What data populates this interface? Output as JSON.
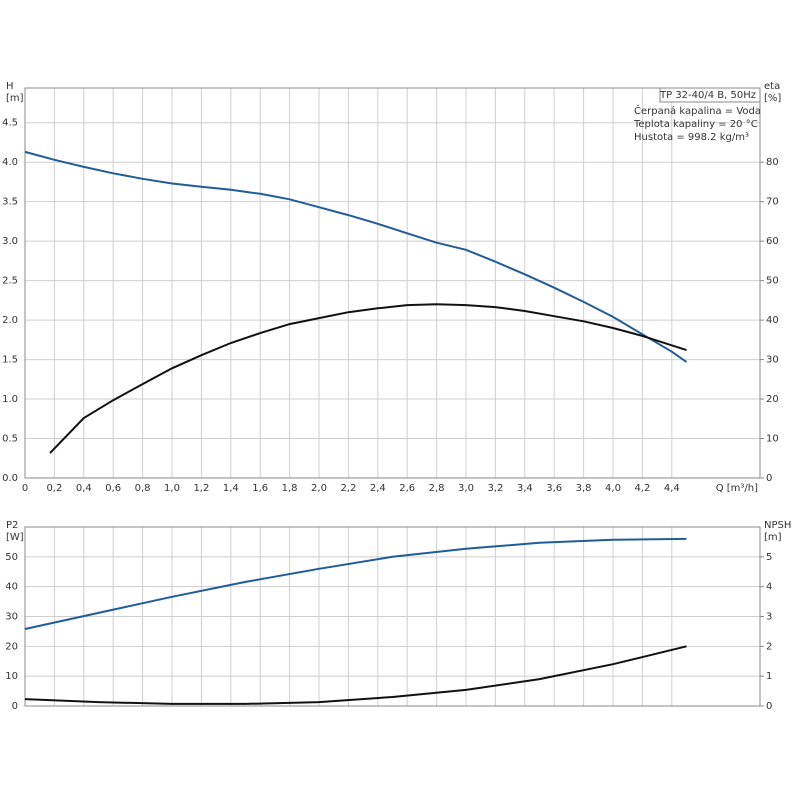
{
  "chart_data": [
    {
      "type": "line",
      "info_title": "TP 32-40/4 B, 50Hz",
      "info_lines": [
        "Čerpaná kapalina = Voda",
        "Teplota kapaliny = 20 °C",
        "Hustota = 998.2 kg/m³"
      ],
      "y_label": [
        "H",
        "[m]"
      ],
      "y2_label": [
        "eta",
        "[%]"
      ],
      "x_label": "Q [m³/h]",
      "xlim": [
        0,
        5.0
      ],
      "xticks": [
        0,
        {
          "value": 0.2,
          "label": "0,2"
        },
        {
          "value": 0.4,
          "label": "0,4"
        },
        {
          "value": 0.6,
          "label": "0,6"
        },
        {
          "value": 0.8,
          "label": "0,8"
        },
        {
          "value": 1.0,
          "label": "1,0"
        },
        {
          "value": 1.2,
          "label": "1,2"
        },
        {
          "value": 1.4,
          "label": "1,4"
        },
        {
          "value": 1.6,
          "label": "1,6"
        },
        {
          "value": 1.8,
          "label": "1,8"
        },
        {
          "value": 2.0,
          "label": "2,0"
        },
        {
          "value": 2.2,
          "label": "2,2"
        },
        {
          "value": 2.4,
          "label": "2,4"
        },
        {
          "value": 2.6,
          "label": "2,6"
        },
        {
          "value": 2.8,
          "label": "2,8"
        },
        {
          "value": 3.0,
          "label": "3,0"
        },
        {
          "value": 3.2,
          "label": "3,2"
        },
        {
          "value": 3.4,
          "label": "3,4"
        },
        {
          "value": 3.6,
          "label": "3,6"
        },
        {
          "value": 3.8,
          "label": "3,8"
        },
        {
          "value": 4.0,
          "label": "4,0"
        },
        {
          "value": 4.2,
          "label": "4,2"
        },
        {
          "value": 4.4,
          "label": "4,4"
        }
      ],
      "ylim": [
        0,
        4.94
      ],
      "yticks": [
        {
          "value": 0,
          "label": "0.0"
        },
        0.5,
        {
          "value": 1,
          "label": "1.0"
        },
        1.5,
        {
          "value": 2,
          "label": "2.0"
        },
        2.5,
        {
          "value": 3,
          "label": "3.0"
        },
        3.5,
        {
          "value": 4,
          "label": "4.0"
        },
        4.5
      ],
      "y2lim": [
        0,
        98.8
      ],
      "y2ticks": [
        0,
        10,
        20,
        30,
        40,
        50,
        60,
        70,
        80
      ],
      "grid": true,
      "series": [
        {
          "color": "#1f5c99",
          "x": [
            0,
            0.2,
            0.4,
            0.6,
            0.8,
            1.0,
            1.2,
            1.4,
            1.6,
            1.8,
            2.0,
            2.2,
            2.4,
            2.6,
            2.8,
            3.0,
            3.2,
            3.4,
            3.6,
            3.8,
            4.0,
            4.2,
            4.4,
            4.5
          ],
          "values": [
            4.13,
            4.03,
            3.94,
            3.86,
            3.79,
            3.73,
            3.69,
            3.65,
            3.6,
            3.53,
            3.43,
            3.33,
            3.22,
            3.1,
            2.98,
            2.89,
            2.74,
            2.58,
            2.41,
            2.23,
            2.04,
            1.82,
            1.6,
            1.47
          ]
        },
        {
          "color": "#111111",
          "axis": "y2",
          "x": [
            0.17,
            0.4,
            0.6,
            0.8,
            1.0,
            1.2,
            1.4,
            1.6,
            1.8,
            2.0,
            2.2,
            2.4,
            2.6,
            2.8,
            3.0,
            3.2,
            3.4,
            3.6,
            3.8,
            4.0,
            4.2,
            4.5
          ],
          "values": [
            6.3,
            15.2,
            19.7,
            23.8,
            27.8,
            31.1,
            34.2,
            36.7,
            39,
            40.5,
            42,
            43,
            43.8,
            44,
            43.8,
            43.3,
            42.3,
            41,
            39.7,
            38,
            36,
            32.4
          ]
        }
      ]
    },
    {
      "type": "line",
      "y_label": [
        "P2",
        "[W]"
      ],
      "y2_label": [
        "NPSH",
        "[m]"
      ],
      "xlim": [
        0,
        5.0
      ],
      "ylim": [
        0,
        60
      ],
      "yticks": [
        0,
        10,
        20,
        30,
        40,
        50
      ],
      "y2lim": [
        0,
        6
      ],
      "y2ticks": [
        0,
        1,
        2,
        3,
        4,
        5
      ],
      "grid": true,
      "series": [
        {
          "color": "#1f5c99",
          "x": [
            0,
            0.5,
            1.0,
            1.5,
            2.0,
            2.5,
            3.0,
            3.5,
            4.0,
            4.5
          ],
          "values": [
            25.8,
            31.2,
            36.6,
            41.6,
            46,
            50,
            52.7,
            54.7,
            55.7,
            56
          ]
        },
        {
          "color": "#111111",
          "axis": "y2",
          "x": [
            0,
            0.5,
            1.0,
            1.5,
            2.0,
            2.5,
            3.0,
            3.5,
            4.0,
            4.5
          ],
          "values": [
            0.23,
            0.13,
            0.07,
            0.07,
            0.13,
            0.3,
            0.54,
            0.9,
            1.4,
            2.0
          ]
        }
      ]
    }
  ]
}
